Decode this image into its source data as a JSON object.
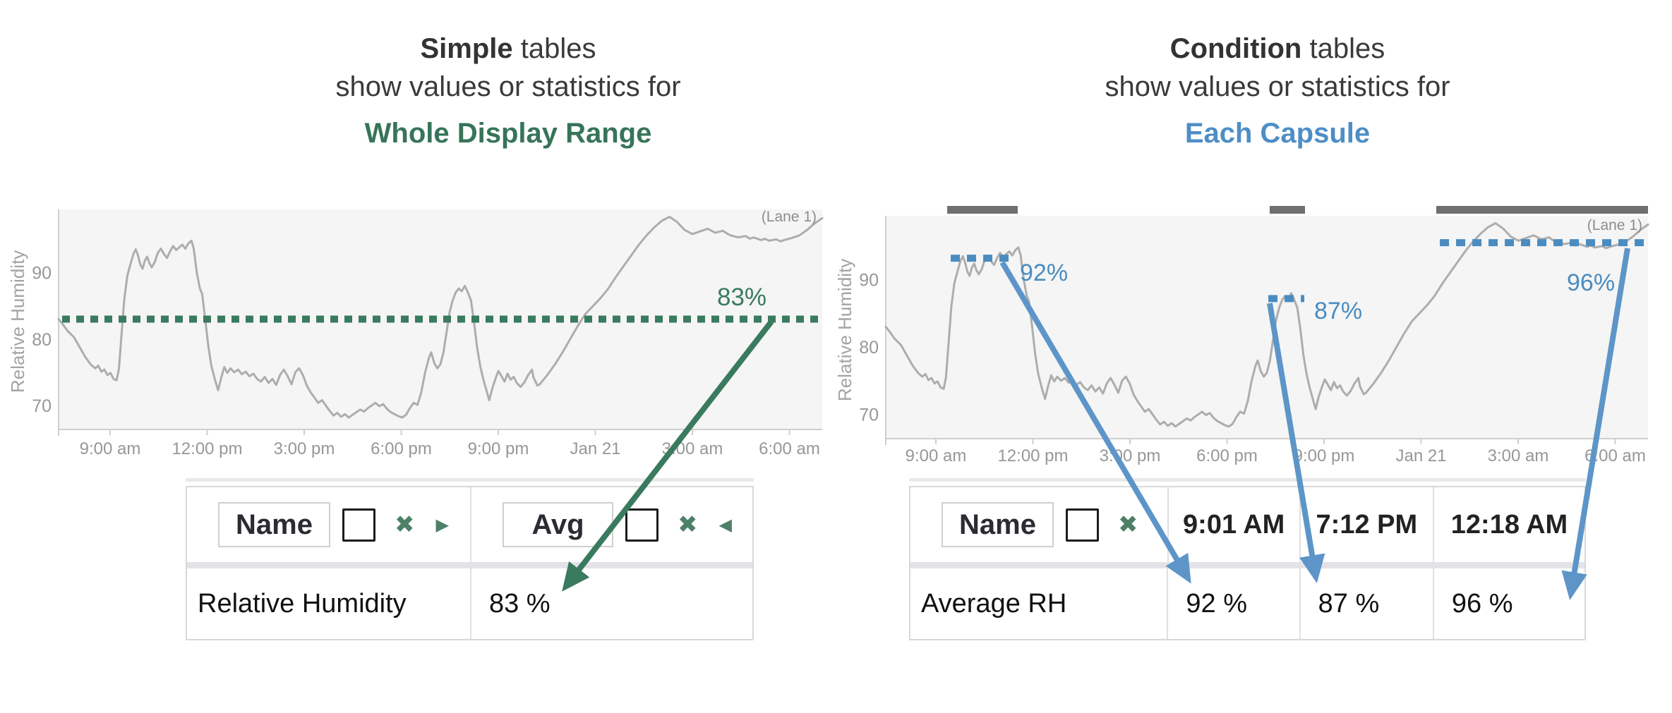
{
  "colors": {
    "green_accent": "#3a7a5e",
    "green_icon": "#4e8068",
    "blue_accent": "#4a8cc0",
    "blue_arrow": "#5d95c8",
    "trace": "#adadad",
    "plot_bg": "#f5f5f5",
    "axis_line": "#cfcfcf",
    "tick_text": "#979797",
    "capsule_bar": "#6f6f6f"
  },
  "panels": {
    "left": {
      "title": {
        "bold": "Simple",
        "rest": " tables",
        "line2": "show values or statistics for",
        "emphasis": "Whole Display Range"
      },
      "chart": {
        "y_axis_label": "Relative Humidity",
        "lane_label": "(Lane 1)",
        "avg_label": "83%"
      },
      "table": {
        "name_header": "Name",
        "stat_header": "Avg",
        "row_name": "Relative Humidity",
        "row_value": "83 %"
      }
    },
    "right": {
      "title": {
        "bold": "Condition",
        "rest": " tables",
        "line2": "show values or statistics for",
        "emphasis": "Each Capsule"
      },
      "chart": {
        "y_axis_label": "Relative Humidity",
        "lane_label": "(Lane 1)",
        "capsule_labels": [
          "92%",
          "87%",
          "96%"
        ]
      },
      "table": {
        "name_header": "Name",
        "columns": [
          "9:01 AM",
          "7:12 PM",
          "12:18 AM"
        ],
        "row_name": "Average RH",
        "row_values": [
          "92 %",
          "87 %",
          "96 %"
        ]
      }
    }
  },
  "chart_data": [
    {
      "type": "line",
      "title": "Simple tables show values or statistics for Whole Display Range",
      "ylabel": "Relative Humidity",
      "ylim": [
        66.5,
        99.5
      ],
      "y_ticks": [
        90,
        80,
        70
      ],
      "x_ticks": [
        "9:00 am",
        "12:00 pm",
        "3:00 pm",
        "6:00 pm",
        "9:00 pm",
        "Jan 21",
        "3:00 am",
        "6:00 am"
      ],
      "legend": "(Lane 1)",
      "grid": false,
      "avg_line": {
        "value": 83,
        "label": "83%",
        "statistic": "Avg",
        "series": "Relative Humidity"
      },
      "series": [
        {
          "name": "Relative Humidity",
          "points": [
            [
              0,
              83
            ],
            [
              0.005,
              82.3
            ],
            [
              0.012,
              81.2
            ],
            [
              0.02,
              80.3
            ],
            [
              0.028,
              78.7
            ],
            [
              0.035,
              77.3
            ],
            [
              0.042,
              76.2
            ],
            [
              0.048,
              75.6
            ],
            [
              0.052,
              76
            ],
            [
              0.056,
              75.1
            ],
            [
              0.06,
              75.4
            ],
            [
              0.064,
              74.6
            ],
            [
              0.068,
              74.9
            ],
            [
              0.072,
              74
            ],
            [
              0.076,
              73.8
            ],
            [
              0.079,
              75.5
            ],
            [
              0.082,
              80
            ],
            [
              0.086,
              86
            ],
            [
              0.09,
              89.5
            ],
            [
              0.094,
              91.2
            ],
            [
              0.098,
              92.8
            ],
            [
              0.101,
              93.5
            ],
            [
              0.104,
              92.6
            ],
            [
              0.107,
              91.2
            ],
            [
              0.11,
              90.6
            ],
            [
              0.113,
              91.8
            ],
            [
              0.116,
              92.4
            ],
            [
              0.119,
              91.4
            ],
            [
              0.122,
              90.8
            ],
            [
              0.126,
              91.6
            ],
            [
              0.13,
              93
            ],
            [
              0.134,
              93.6
            ],
            [
              0.138,
              92.8
            ],
            [
              0.142,
              92.2
            ],
            [
              0.146,
              93.2
            ],
            [
              0.15,
              94
            ],
            [
              0.154,
              93.4
            ],
            [
              0.158,
              93.8
            ],
            [
              0.162,
              94.2
            ],
            [
              0.166,
              93.6
            ],
            [
              0.17,
              94.4
            ],
            [
              0.174,
              94.8
            ],
            [
              0.177,
              93.6
            ],
            [
              0.181,
              90
            ],
            [
              0.185,
              87.6
            ],
            [
              0.188,
              86.8
            ],
            [
              0.192,
              83
            ],
            [
              0.196,
              79
            ],
            [
              0.2,
              76
            ],
            [
              0.205,
              73.8
            ],
            [
              0.209,
              72.3
            ],
            [
              0.213,
              74.2
            ],
            [
              0.217,
              75.8
            ],
            [
              0.221,
              74.9
            ],
            [
              0.225,
              75.6
            ],
            [
              0.23,
              75
            ],
            [
              0.235,
              75.4
            ],
            [
              0.24,
              74.7
            ],
            [
              0.245,
              75.1
            ],
            [
              0.25,
              74.4
            ],
            [
              0.255,
              74.8
            ],
            [
              0.26,
              74
            ],
            [
              0.265,
              73.6
            ],
            [
              0.27,
              74.3
            ],
            [
              0.275,
              73.4
            ],
            [
              0.28,
              74
            ],
            [
              0.285,
              73.1
            ],
            [
              0.29,
              74.6
            ],
            [
              0.295,
              75.4
            ],
            [
              0.3,
              74.4
            ],
            [
              0.305,
              73.2
            ],
            [
              0.31,
              75
            ],
            [
              0.315,
              75.6
            ],
            [
              0.32,
              74.6
            ],
            [
              0.325,
              73
            ],
            [
              0.33,
              72
            ],
            [
              0.335,
              71.2
            ],
            [
              0.34,
              70.4
            ],
            [
              0.345,
              70.8
            ],
            [
              0.35,
              70
            ],
            [
              0.355,
              69.2
            ],
            [
              0.36,
              68.5
            ],
            [
              0.365,
              68.9
            ],
            [
              0.37,
              68.3
            ],
            [
              0.375,
              68.7
            ],
            [
              0.38,
              68.2
            ],
            [
              0.385,
              68.6
            ],
            [
              0.39,
              69
            ],
            [
              0.395,
              69.4
            ],
            [
              0.4,
              69.1
            ],
            [
              0.405,
              69.6
            ],
            [
              0.41,
              70
            ],
            [
              0.415,
              70.4
            ],
            [
              0.42,
              69.9
            ],
            [
              0.425,
              70.2
            ],
            [
              0.43,
              69.5
            ],
            [
              0.435,
              69
            ],
            [
              0.44,
              68.7
            ],
            [
              0.445,
              68.4
            ],
            [
              0.45,
              68.2
            ],
            [
              0.455,
              68.6
            ],
            [
              0.46,
              69.6
            ],
            [
              0.465,
              70.4
            ],
            [
              0.47,
              70.1
            ],
            [
              0.475,
              72
            ],
            [
              0.48,
              75
            ],
            [
              0.485,
              77.2
            ],
            [
              0.488,
              78
            ],
            [
              0.492,
              76.4
            ],
            [
              0.496,
              75.6
            ],
            [
              0.5,
              76.2
            ],
            [
              0.504,
              78
            ],
            [
              0.508,
              81
            ],
            [
              0.512,
              84
            ],
            [
              0.516,
              85.8
            ],
            [
              0.52,
              87
            ],
            [
              0.524,
              87.6
            ],
            [
              0.528,
              87.2
            ],
            [
              0.532,
              88
            ],
            [
              0.536,
              87
            ],
            [
              0.54,
              85.8
            ],
            [
              0.544,
              82.6
            ],
            [
              0.548,
              78.8
            ],
            [
              0.552,
              76
            ],
            [
              0.556,
              74
            ],
            [
              0.56,
              72.4
            ],
            [
              0.564,
              70.8
            ],
            [
              0.568,
              72.6
            ],
            [
              0.572,
              74
            ],
            [
              0.576,
              75.2
            ],
            [
              0.58,
              74.4
            ],
            [
              0.584,
              73.6
            ],
            [
              0.588,
              74.8
            ],
            [
              0.592,
              73.9
            ],
            [
              0.596,
              74.3
            ],
            [
              0.6,
              73.4
            ],
            [
              0.605,
              72.8
            ],
            [
              0.61,
              73.5
            ],
            [
              0.615,
              74.6
            ],
            [
              0.62,
              75.4
            ],
            [
              0.622,
              74.2
            ],
            [
              0.627,
              73
            ],
            [
              0.63,
              73.2
            ],
            [
              0.64,
              74.6
            ],
            [
              0.65,
              76.2
            ],
            [
              0.66,
              78
            ],
            [
              0.67,
              80
            ],
            [
              0.68,
              82
            ],
            [
              0.69,
              83.8
            ],
            [
              0.7,
              85
            ],
            [
              0.71,
              86.2
            ],
            [
              0.72,
              87.6
            ],
            [
              0.73,
              89.4
            ],
            [
              0.74,
              91
            ],
            [
              0.75,
              92.6
            ],
            [
              0.76,
              94.2
            ],
            [
              0.77,
              95.6
            ],
            [
              0.78,
              96.8
            ],
            [
              0.79,
              97.8
            ],
            [
              0.8,
              98.4
            ],
            [
              0.81,
              97.6
            ],
            [
              0.815,
              97
            ],
            [
              0.82,
              96.4
            ],
            [
              0.83,
              95.8
            ],
            [
              0.84,
              96.2
            ],
            [
              0.85,
              96.6
            ],
            [
              0.855,
              96.3
            ],
            [
              0.86,
              96
            ],
            [
              0.87,
              96.3
            ],
            [
              0.875,
              95.9
            ],
            [
              0.88,
              95.6
            ],
            [
              0.89,
              95.3
            ],
            [
              0.9,
              95.5
            ],
            [
              0.905,
              95.1
            ],
            [
              0.91,
              95.3
            ],
            [
              0.92,
              94.9
            ],
            [
              0.925,
              95.1
            ],
            [
              0.93,
              94.8
            ],
            [
              0.94,
              95
            ],
            [
              0.945,
              94.7
            ],
            [
              0.95,
              94.9
            ],
            [
              0.96,
              95.2
            ],
            [
              0.97,
              95.6
            ],
            [
              0.98,
              96.4
            ],
            [
              0.99,
              97.4
            ],
            [
              1,
              98.2
            ]
          ]
        }
      ],
      "table": {
        "columns": [
          "Name",
          "Avg"
        ],
        "rows": [
          [
            "Relative Humidity",
            "83 %"
          ]
        ]
      }
    },
    {
      "type": "line",
      "title": "Condition tables show values or statistics for Each Capsule",
      "ylabel": "Relative Humidity",
      "ylim": [
        66.5,
        99.5
      ],
      "y_ticks": [
        90,
        80,
        70
      ],
      "x_ticks": [
        "9:00 am",
        "12:00 pm",
        "3:00 pm",
        "6:00 pm",
        "9:00 pm",
        "Jan 21",
        "3:00 am",
        "6:00 am"
      ],
      "legend": "(Lane 1)",
      "grid": false,
      "series": "same signal as chart 0 (Relative Humidity)",
      "capsules": [
        {
          "label": "9:01 AM",
          "avg": 92,
          "stat_label": "92%",
          "bar_span": [
            0.0806,
            0.1731
          ],
          "dash_span": [
            0.0852,
            0.162
          ],
          "dash_value": 93.2
        },
        {
          "label": "7:12 PM",
          "avg": 87,
          "stat_label": "87%",
          "bar_span": [
            0.5037,
            0.55
          ],
          "dash_span": [
            0.5019,
            0.5491
          ],
          "dash_value": 87.2
        },
        {
          "label": "12:18 AM",
          "avg": 96,
          "stat_label": "96%",
          "bar_span": [
            0.7222,
            1.0
          ],
          "dash_span": [
            0.7269,
            0.9954
          ],
          "dash_value": 95.5
        }
      ],
      "table": {
        "columns": [
          "Name",
          "9:01 AM",
          "7:12 PM",
          "12:18 AM"
        ],
        "rows": [
          [
            "Average RH",
            "92 %",
            "87 %",
            "96 %"
          ]
        ]
      }
    }
  ]
}
